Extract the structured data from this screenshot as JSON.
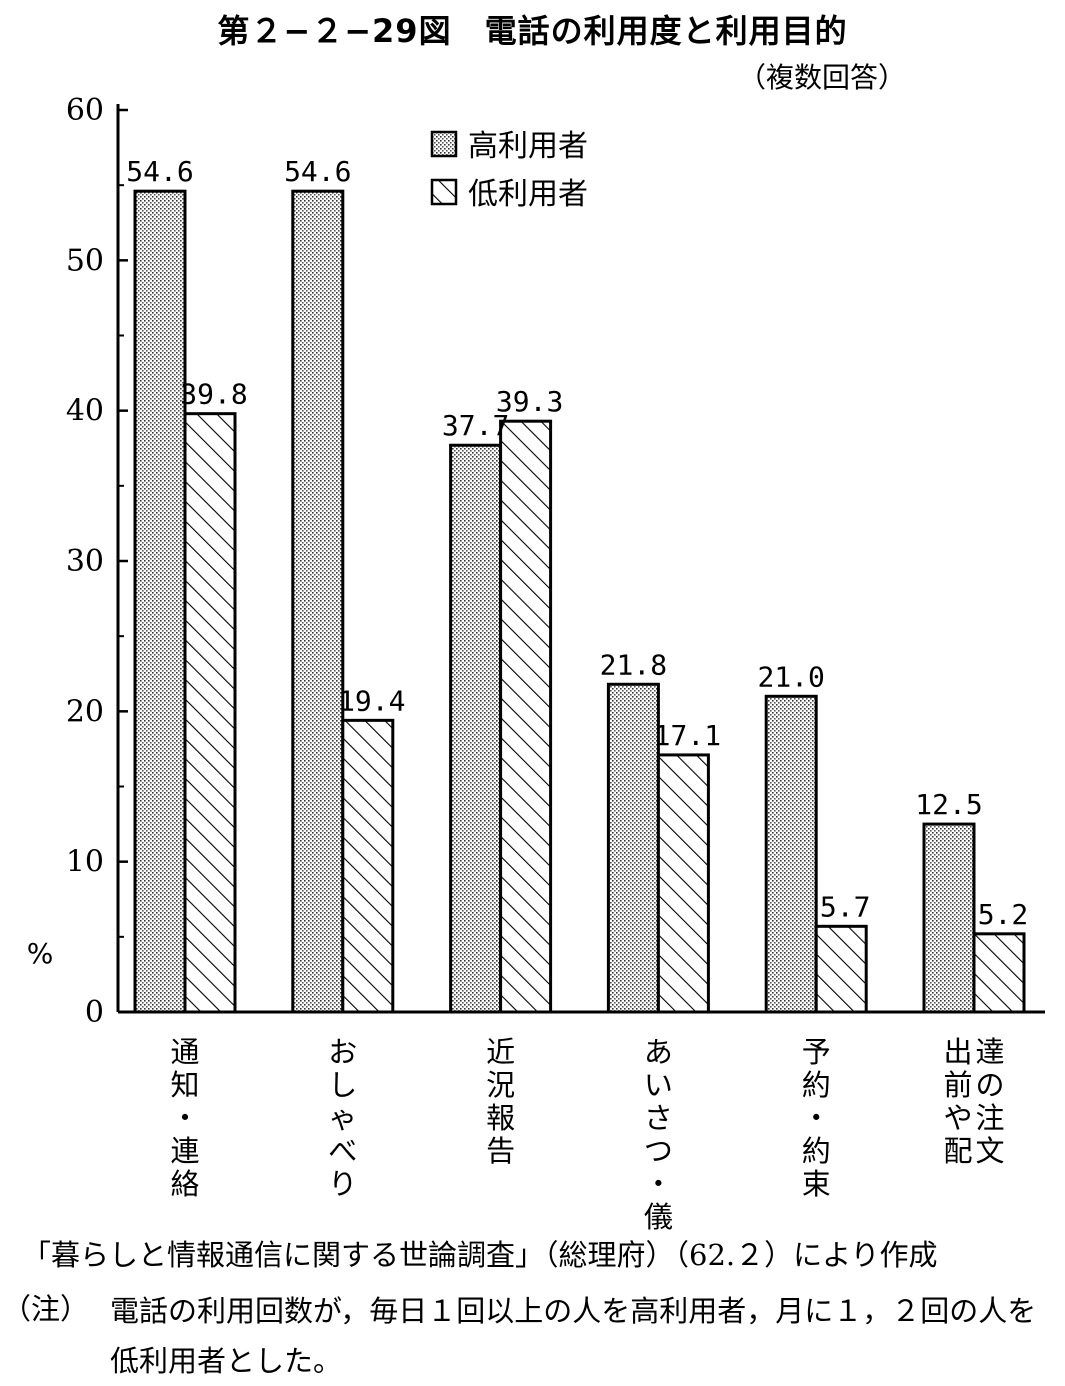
{
  "title": "第２−２−29図　電話の利用度と利用目的",
  "subtitle": "（複数回答）",
  "chart_data": {
    "type": "bar",
    "categories": [
      "通知・連絡",
      "おしゃべり",
      "近況報告",
      "あいさつ・儀礼",
      "予約・約束",
      "出前や配達の注文"
    ],
    "category_label_columns": [
      [
        "通知・連絡"
      ],
      [
        "おしゃべり"
      ],
      [
        "近況報告"
      ],
      [
        "あいさつ・儀礼"
      ],
      [
        "予約・約束"
      ],
      [
        "出前や配",
        "達の注文"
      ]
    ],
    "series": [
      {
        "name": "高利用者",
        "values": [
          54.6,
          54.6,
          37.7,
          21.8,
          21.0,
          12.5
        ],
        "pattern": "dotted"
      },
      {
        "name": "低利用者",
        "values": [
          39.8,
          19.4,
          39.3,
          17.1,
          5.7,
          5.2
        ],
        "pattern": "hatched"
      }
    ],
    "data_labels": [
      [
        "54.6",
        "54.6",
        "37.7",
        "21.8",
        "21.0",
        "12.5"
      ],
      [
        "39.8",
        "19.4",
        "39.3",
        "17.1",
        "5.7",
        "5.2"
      ]
    ],
    "ylim": [
      0,
      60
    ],
    "yticks": [
      0,
      10,
      20,
      30,
      40,
      50,
      60
    ],
    "ylabel": "%",
    "xlabel": "",
    "legend_position": "top-center",
    "grid": false
  },
  "source": "「暮らしと情報通信に関する世論調査」（総理府）（62.２）により作成",
  "note": {
    "label": "（注）",
    "text": "電話の利用回数が，毎日１回以上の人を高利用者，月に１，２回の人を低利用者とした。"
  }
}
